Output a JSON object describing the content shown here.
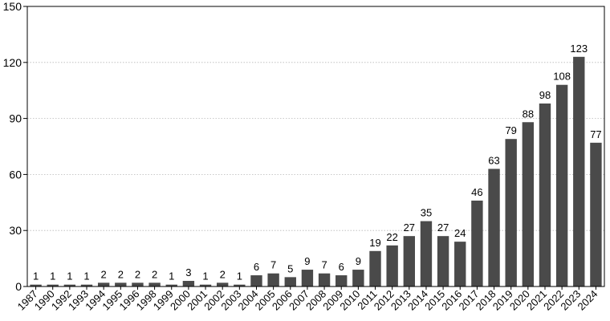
{
  "chart_data": {
    "type": "bar",
    "categories": [
      "1987",
      "1990",
      "1992",
      "1993",
      "1994",
      "1995",
      "1996",
      "1998",
      "1999",
      "2000",
      "2001",
      "2002",
      "2003",
      "2004",
      "2005",
      "2006",
      "2007",
      "2008",
      "2009",
      "2010",
      "2011",
      "2012",
      "2013",
      "2014",
      "2015",
      "2016",
      "2017",
      "2018",
      "2019",
      "2020",
      "2021",
      "2022",
      "2023",
      "2024"
    ],
    "values": [
      1,
      1,
      1,
      1,
      2,
      2,
      2,
      2,
      1,
      3,
      1,
      2,
      1,
      6,
      7,
      5,
      9,
      7,
      6,
      9,
      19,
      22,
      27,
      35,
      27,
      24,
      46,
      63,
      79,
      88,
      98,
      108,
      123,
      77
    ],
    "ylim": [
      0,
      150
    ],
    "yticks": [
      "0",
      "30",
      "60",
      "90",
      "120",
      "150"
    ],
    "grid": true,
    "bar_color": "#4a4a4a"
  }
}
